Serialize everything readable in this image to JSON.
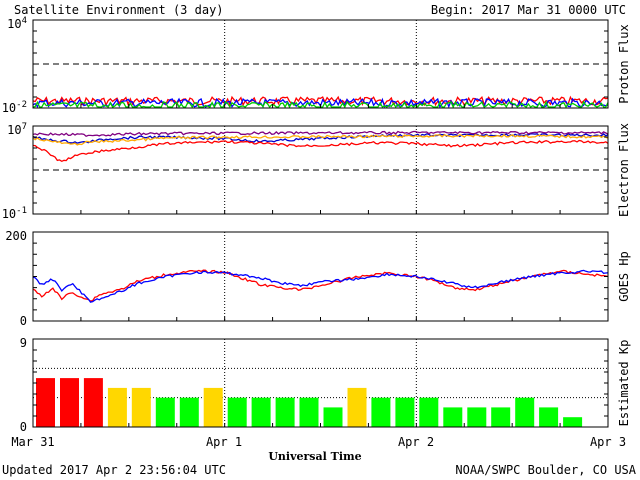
{
  "header": {
    "title": "Satellite Environment (3 day)",
    "begin": "Begin:  2017 Mar 31 0000 UTC"
  },
  "footer": {
    "updated": "Updated 2017 Apr  2 23:56:04 UTC",
    "credit": "NOAA/SWPC Boulder, CO USA"
  },
  "x_axis": {
    "label": "Universal Time",
    "ticks": [
      "Mar 31",
      "Apr 1",
      "Apr 2",
      "Apr 3"
    ]
  },
  "chart_data": [
    {
      "type": "line",
      "ylabel": "Proton Flux",
      "yscale": "log",
      "ylim": [
        0.01,
        10000
      ],
      "y_tick_labels": [
        "10^4",
        "10^-2"
      ],
      "threshold": 10,
      "x_unit": "days since 2017 Mar 31 00:00 UTC",
      "series": [
        {
          "color": "#ff0000",
          "values": [
            [
              0,
              0.03
            ],
            [
              3,
              0.03
            ]
          ],
          "noise": "high"
        },
        {
          "color": "#0000ff",
          "values": [
            [
              0,
              0.022
            ],
            [
              3,
              0.022
            ]
          ],
          "noise": "high"
        },
        {
          "color": "#00cc00",
          "values": [
            [
              0,
              0.014
            ],
            [
              3,
              0.014
            ]
          ],
          "noise": "high"
        }
      ]
    },
    {
      "type": "line",
      "ylabel": "Electron Flux",
      "yscale": "log",
      "ylim": [
        0.1,
        10000000
      ],
      "y_tick_labels": [
        "10^7",
        "10^-1"
      ],
      "threshold": 1000,
      "series": [
        {
          "color": "#0000cc",
          "values": [
            [
              0,
              1200000
            ],
            [
              0.05,
              600000
            ],
            [
              0.25,
              300000
            ],
            [
              0.4,
              700000
            ],
            [
              0.6,
              1000000
            ],
            [
              0.8,
              900000
            ],
            [
              1.0,
              700000
            ],
            [
              1.2,
              400000
            ],
            [
              1.4,
              600000
            ],
            [
              1.6,
              900000
            ],
            [
              1.8,
              1300000
            ],
            [
              2.0,
              1500000
            ],
            [
              2.2,
              1400000
            ],
            [
              2.5,
              1600000
            ],
            [
              2.8,
              1500000
            ],
            [
              3.0,
              1500000
            ]
          ]
        },
        {
          "color": "#800080",
          "values": [
            [
              0,
              2000000
            ],
            [
              0.3,
              1500000
            ],
            [
              0.6,
              2000000
            ],
            [
              1.0,
              2200000
            ],
            [
              1.5,
              2300000
            ],
            [
              2.0,
              2500000
            ],
            [
              2.5,
              2500000
            ],
            [
              3.0,
              2400000
            ]
          ]
        },
        {
          "color": "#ffaa00",
          "values": [
            [
              0,
              800000
            ],
            [
              0.1,
              400000
            ],
            [
              0.2,
              200000
            ],
            [
              0.3,
              350000
            ],
            [
              0.5,
              500000
            ],
            [
              0.7,
              800000
            ],
            [
              1.0,
              1000000
            ],
            [
              1.3,
              1000000
            ],
            [
              1.6,
              1100000
            ],
            [
              2.0,
              1200000
            ],
            [
              2.4,
              1300000
            ],
            [
              2.8,
              1100000
            ],
            [
              3.0,
              1000000
            ]
          ]
        },
        {
          "color": "#ff0000",
          "values": [
            [
              0,
              200000
            ],
            [
              0.05,
              70000
            ],
            [
              0.1,
              20000
            ],
            [
              0.15,
              5000
            ],
            [
              0.2,
              15000
            ],
            [
              0.3,
              40000
            ],
            [
              0.5,
              100000
            ],
            [
              0.7,
              250000
            ],
            [
              1.0,
              400000
            ],
            [
              1.2,
              250000
            ],
            [
              1.4,
              150000
            ],
            [
              1.6,
              200000
            ],
            [
              1.8,
              300000
            ],
            [
              2.0,
              250000
            ],
            [
              2.2,
              150000
            ],
            [
              2.5,
              300000
            ],
            [
              2.8,
              400000
            ],
            [
              3.0,
              300000
            ]
          ]
        }
      ]
    },
    {
      "type": "line",
      "ylabel": "GOES Hp",
      "ylim": [
        0,
        200
      ],
      "y_tick_labels": [
        "200",
        "0"
      ],
      "series": [
        {
          "color": "#ff0000",
          "values": [
            [
              0,
              70
            ],
            [
              0.05,
              55
            ],
            [
              0.1,
              75
            ],
            [
              0.15,
              50
            ],
            [
              0.2,
              65
            ],
            [
              0.3,
              45
            ],
            [
              0.35,
              60
            ],
            [
              0.45,
              70
            ],
            [
              0.55,
              90
            ],
            [
              0.7,
              105
            ],
            [
              0.85,
              112
            ],
            [
              1.0,
              110
            ],
            [
              1.1,
              95
            ],
            [
              1.2,
              80
            ],
            [
              1.3,
              75
            ],
            [
              1.4,
              70
            ],
            [
              1.55,
              85
            ],
            [
              1.7,
              100
            ],
            [
              1.85,
              108
            ],
            [
              2.0,
              100
            ],
            [
              2.1,
              90
            ],
            [
              2.2,
              75
            ],
            [
              2.3,
              70
            ],
            [
              2.45,
              85
            ],
            [
              2.6,
              100
            ],
            [
              2.75,
              112
            ],
            [
              2.9,
              105
            ],
            [
              3.0,
              100
            ]
          ]
        },
        {
          "color": "#0000ff",
          "values": [
            [
              0,
              100
            ],
            [
              0.05,
              80
            ],
            [
              0.1,
              95
            ],
            [
              0.15,
              70
            ],
            [
              0.2,
              85
            ],
            [
              0.3,
              45
            ],
            [
              0.35,
              50
            ],
            [
              0.45,
              65
            ],
            [
              0.55,
              85
            ],
            [
              0.7,
              100
            ],
            [
              0.85,
              110
            ],
            [
              1.0,
              108
            ],
            [
              1.15,
              100
            ],
            [
              1.3,
              85
            ],
            [
              1.4,
              80
            ],
            [
              1.55,
              90
            ],
            [
              1.7,
              95
            ],
            [
              1.85,
              105
            ],
            [
              2.0,
              100
            ],
            [
              2.15,
              88
            ],
            [
              2.3,
              75
            ],
            [
              2.45,
              88
            ],
            [
              2.6,
              100
            ],
            [
              2.75,
              108
            ],
            [
              2.9,
              112
            ],
            [
              3.0,
              108
            ]
          ]
        }
      ]
    },
    {
      "type": "bar",
      "ylabel": "Estimated Kp",
      "ylim": [
        0,
        9
      ],
      "y_tick_labels": [
        "9",
        "0"
      ],
      "bar_interval_hours": 3,
      "colors": {
        "below_4": "#00ff00",
        "equal_4": "#ffd700",
        "5_or_more": "#ff0000"
      },
      "values": [
        5,
        5,
        5,
        4,
        4,
        3,
        3,
        4,
        3,
        3,
        3,
        3,
        2,
        4,
        3,
        3,
        3,
        2,
        2,
        2,
        3,
        2,
        1
      ]
    }
  ]
}
